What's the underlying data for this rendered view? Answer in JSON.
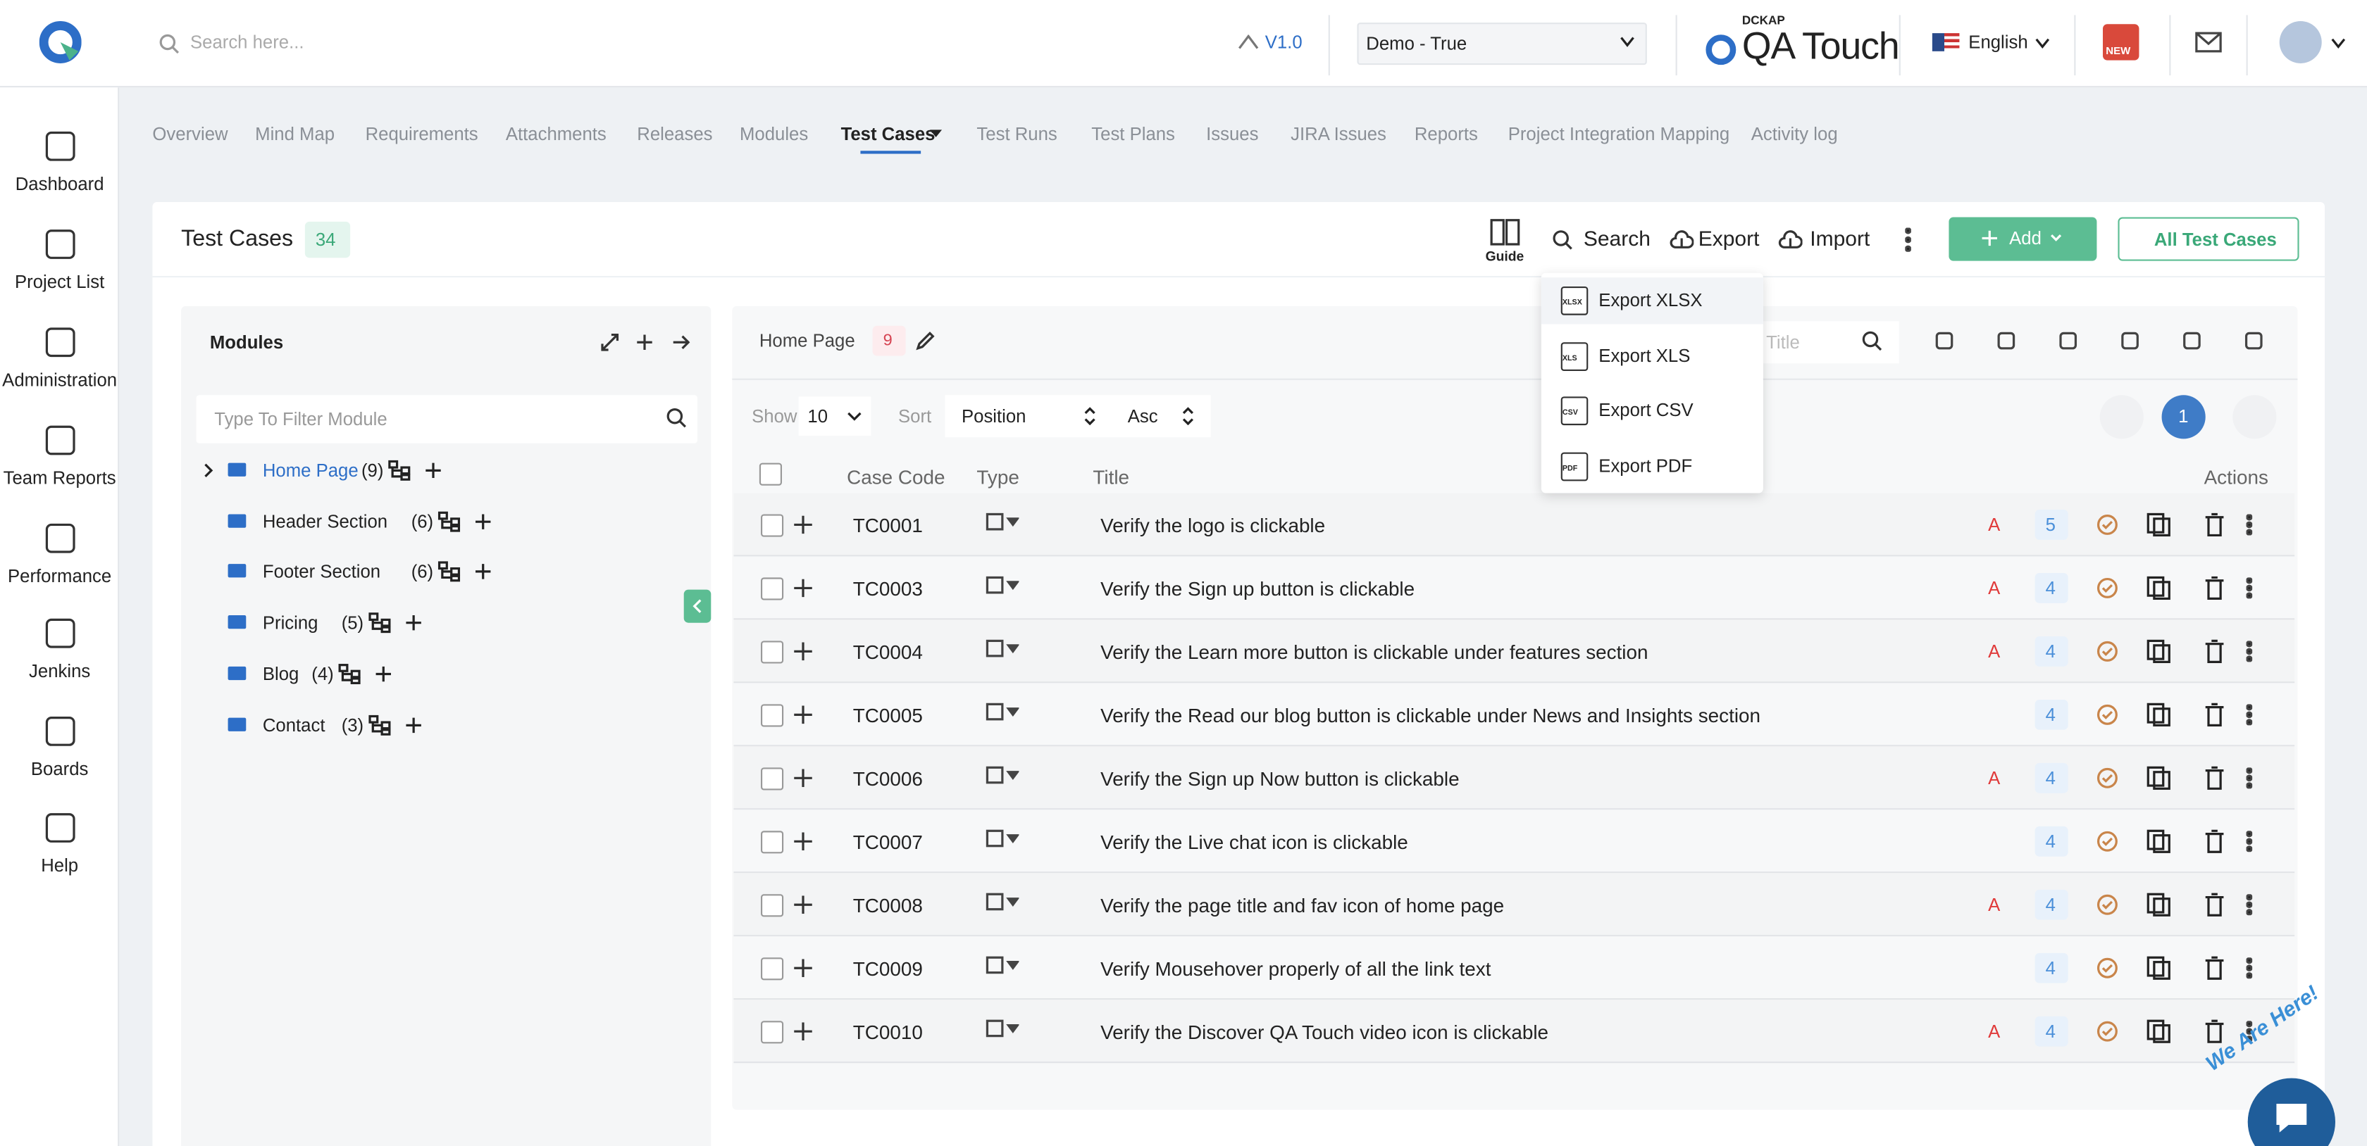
{
  "header": {
    "search_placeholder": "Search here...",
    "version": "V1.0",
    "project": "Demo - True",
    "brand_small": "DCKAP",
    "brand": "QA Touch",
    "language": "English",
    "new_badge": "NEW"
  },
  "sidebar": [
    "Dashboard",
    "Project List",
    "Administration",
    "Team Reports",
    "Performance",
    "Jenkins",
    "Boards",
    "Help"
  ],
  "tabs": [
    "Overview",
    "Mind Map",
    "Requirements",
    "Attachments",
    "Releases",
    "Modules",
    "Test Cases",
    "Test Runs",
    "Test Plans",
    "Issues",
    "JIRA Issues",
    "Reports",
    "Project Integration Mapping",
    "Activity log"
  ],
  "page": {
    "title": "Test Cases",
    "count": "34",
    "guide": "Guide",
    "search": "Search",
    "export": "Export",
    "import": "Import",
    "add": "Add",
    "all_cases": "All Test Cases"
  },
  "export_menu": [
    {
      "label": "Export XLSX",
      "icon": "XLSX"
    },
    {
      "label": "Export XLS",
      "icon": "XLS"
    },
    {
      "label": "Export CSV",
      "icon": "CSV"
    },
    {
      "label": "Export PDF",
      "icon": "PDF"
    }
  ],
  "modules": {
    "title": "Modules",
    "filter_placeholder": "Type To Filter Module",
    "items": [
      {
        "name": "Home Page",
        "count": "(9)"
      },
      {
        "name": "Header Section",
        "count": "(6)"
      },
      {
        "name": "Footer Section",
        "count": "(6)"
      },
      {
        "name": "Pricing",
        "count": "(5)"
      },
      {
        "name": "Blog",
        "count": "(4)"
      },
      {
        "name": "Contact",
        "count": "(3)"
      }
    ]
  },
  "cases": {
    "module": "Home Page",
    "count": "9",
    "title_placeholder": "Title",
    "show": "Show",
    "page_size": "10",
    "sort": "Sort",
    "sort_field": "Position",
    "sort_order": "Asc",
    "page": "1",
    "columns": [
      "Case Code",
      "Type",
      "Title",
      "Actions"
    ],
    "rows": [
      {
        "code": "TC0001",
        "title": "Verify the logo is clickable",
        "priority": "A",
        "number": "5"
      },
      {
        "code": "TC0003",
        "title": "Verify the Sign up button is clickable",
        "priority": "A",
        "number": "4"
      },
      {
        "code": "TC0004",
        "title": "Verify the Learn more button is clickable under features section",
        "priority": "A",
        "number": "4"
      },
      {
        "code": "TC0005",
        "title": "Verify the Read our blog button is clickable under News and Insights section",
        "number": "4"
      },
      {
        "code": "TC0006",
        "title": "Verify the Sign up Now button is clickable",
        "priority": "A",
        "number": "4"
      },
      {
        "code": "TC0007",
        "title": "Verify the Live chat icon is clickable",
        "number": "4"
      },
      {
        "code": "TC0008",
        "title": "Verify the page title and fav icon of home page",
        "priority": "A",
        "number": "4"
      },
      {
        "code": "TC0009",
        "title": "Verify Mousehover properly of all the link text",
        "number": "4"
      },
      {
        "code": "TC0010",
        "title": "Verify the Discover QA Touch video icon is clickable",
        "priority": "A",
        "number": "4"
      }
    ]
  },
  "chat": "We Are Here!"
}
